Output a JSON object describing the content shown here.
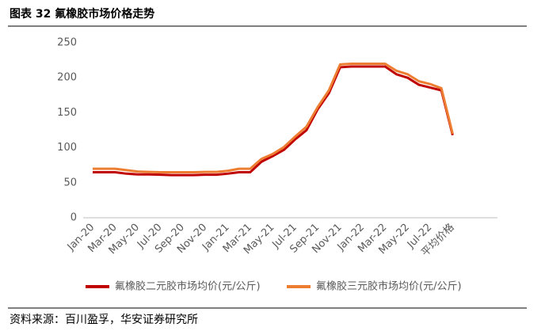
{
  "chart_data": {
    "type": "line",
    "title": "图表 32 氟橡胶市场价格走势",
    "source": "资料来源：百川盈孚，华安证券研究所",
    "categories": [
      "Jan-20",
      null,
      "Mar-20",
      null,
      "May-20",
      null,
      "Jul-20",
      null,
      "Sep-20",
      null,
      "Nov-20",
      null,
      "Jan-21",
      null,
      "Mar-21",
      null,
      "May-21",
      null,
      "Jul-21",
      null,
      "Sep-21",
      null,
      "Nov-21",
      null,
      "Jan-22",
      null,
      "Mar-22",
      null,
      "May-22",
      null,
      "Jul-22",
      null,
      "平均价格"
    ],
    "series": [
      {
        "name": "氟橡胶二元胶市场均价(元/公斤)",
        "color": "#c00000",
        "values": [
          65,
          65,
          65,
          63,
          62,
          62,
          61.5,
          61,
          61,
          61,
          61.5,
          61.5,
          63,
          65,
          65,
          80,
          88,
          97,
          112,
          125,
          155,
          178,
          215,
          216,
          216,
          216,
          216,
          205,
          200,
          190,
          186,
          182,
          118
        ]
      },
      {
        "name": "氟橡胶三元胶市场均价(元/公斤)",
        "color": "#ed7d31",
        "values": [
          70,
          70,
          70,
          68,
          66,
          65.5,
          65,
          65,
          65,
          65,
          65.5,
          65.5,
          67,
          70,
          70,
          84,
          91,
          101,
          116,
          130,
          158,
          182,
          219,
          220,
          220,
          220,
          220,
          210,
          205,
          195,
          191,
          185,
          120
        ]
      }
    ],
    "ylim": [
      0,
      250
    ],
    "yticks": [
      0,
      50,
      100,
      150,
      200,
      250
    ]
  }
}
